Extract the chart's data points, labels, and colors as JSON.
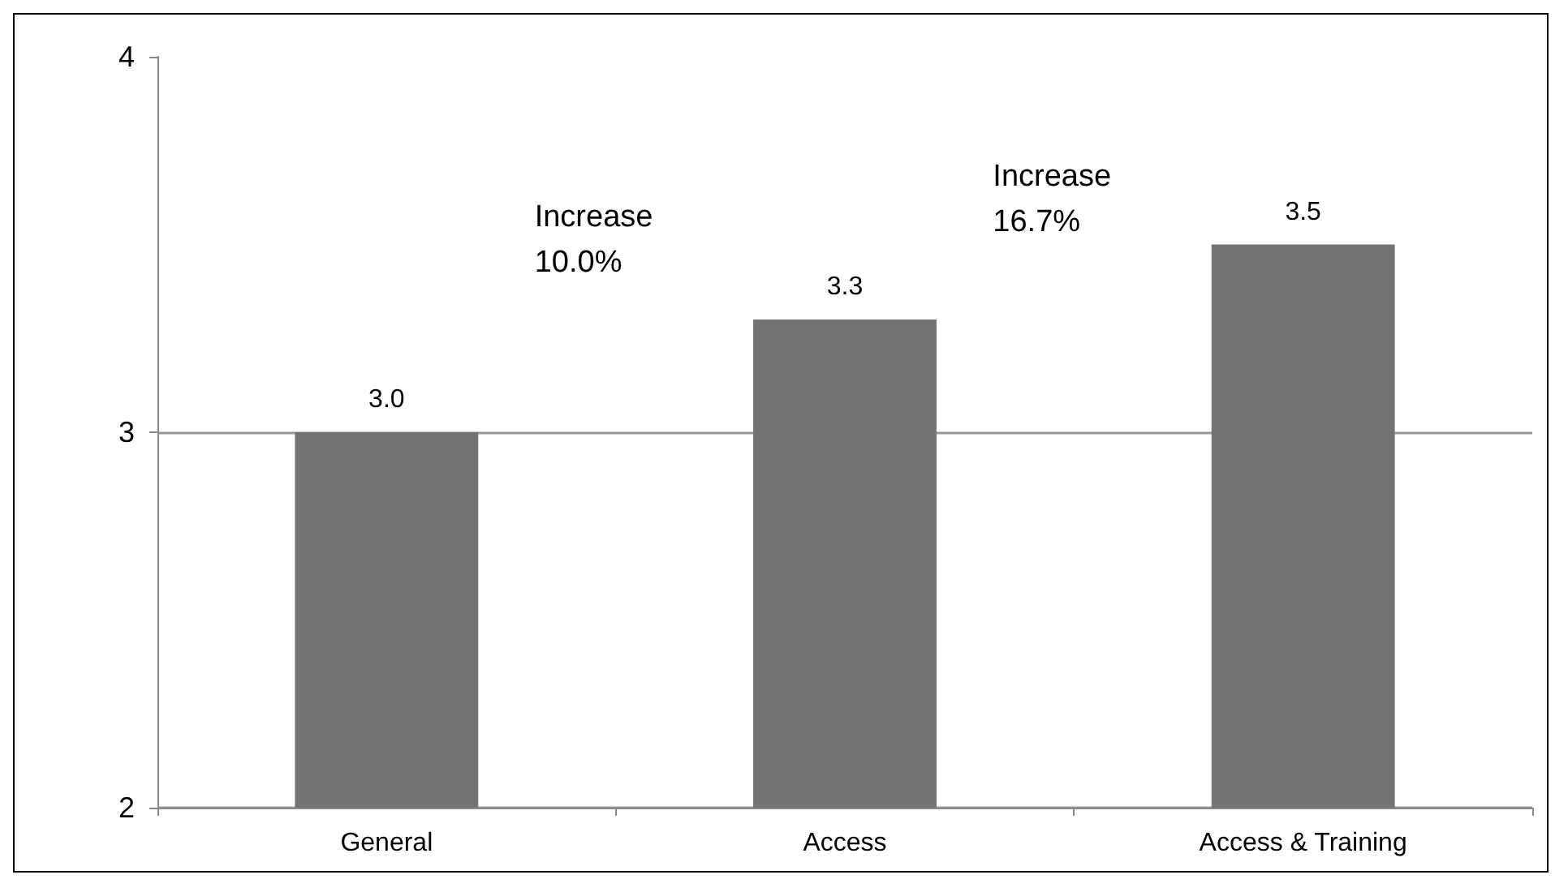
{
  "chart_data": {
    "type": "bar",
    "categories": [
      "General",
      "Access",
      "Access & Training"
    ],
    "values": [
      3.0,
      3.3,
      3.5
    ],
    "color": "#737373",
    "value_labels": [
      "3.0",
      "3.3",
      "3.5"
    ],
    "ylim": [
      2,
      4
    ],
    "yticks": [
      2,
      3,
      4
    ],
    "grid": "y",
    "annotations": [
      "Increase\n10.0%",
      "Increase\n16.7%"
    ]
  }
}
